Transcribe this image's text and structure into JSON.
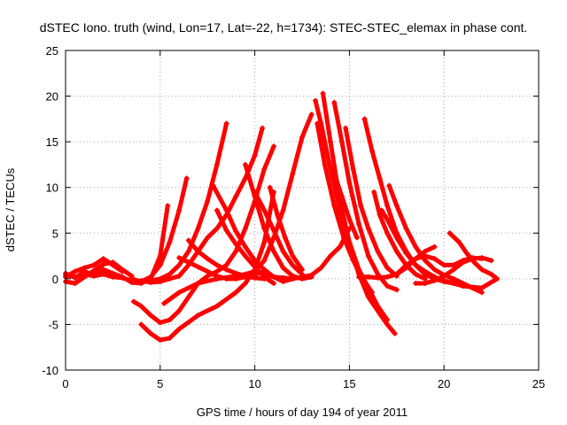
{
  "chart_data": {
    "type": "scatter",
    "title": "dSTEC Iono. truth (wind, Lon=17, Lat=-22, h=1734): STEC-STEC_elemax in phase cont.",
    "xlabel": "GPS time / hours of day 194 of year 2011",
    "ylabel": "dSTEC  / TECUs",
    "xlim": [
      0,
      25
    ],
    "ylim": [
      -10,
      25
    ],
    "xticks": [
      0,
      5,
      10,
      15,
      20,
      25
    ],
    "yticks": [
      -10,
      -5,
      0,
      5,
      10,
      15,
      20,
      25
    ],
    "grid": true,
    "marker": "+",
    "color": "#ff0000",
    "series": [
      {
        "x": [
          0,
          0.5,
          1,
          1.5,
          2,
          2.5,
          3,
          3.5,
          4,
          4.5,
          5,
          5.5,
          6,
          6.4
        ],
        "y": [
          0.4,
          0.2,
          0.5,
          0.3,
          0.5,
          0.2,
          0.1,
          -0.2,
          -0.3,
          0.2,
          1.5,
          4,
          7.5,
          11
        ]
      },
      {
        "x": [
          0,
          0.5,
          1,
          1.5,
          2,
          2.5,
          3,
          3.5,
          4,
          4.5,
          5,
          5.4
        ],
        "y": [
          0.6,
          0.1,
          0.8,
          0.4,
          1.0,
          0.6,
          0.2,
          -0.4,
          -0.5,
          0,
          2.5,
          8
        ]
      },
      {
        "x": [
          0,
          0.5,
          1,
          1.5,
          2,
          2.5,
          3,
          3.5
        ],
        "y": [
          -0.3,
          -0.5,
          0.2,
          0.9,
          1.6,
          1.8,
          1.0,
          0.3
        ]
      },
      {
        "x": [
          0,
          0.5,
          1,
          1.5,
          2,
          2.5,
          3
        ],
        "y": [
          0.2,
          0.8,
          1.2,
          1.5,
          2.2,
          1.5,
          0.8
        ]
      },
      {
        "x": [
          3.5,
          4,
          4.5,
          5,
          5.5,
          6,
          6.5,
          7,
          7.5,
          8,
          8.5
        ],
        "y": [
          0,
          -0.3,
          -0.2,
          0,
          0.5,
          1.5,
          3,
          5.5,
          8.5,
          12.5,
          17
        ]
      },
      {
        "x": [
          4,
          4.5,
          5,
          5.5,
          6,
          6.5,
          7,
          7.5,
          8,
          8.5,
          9,
          9.5,
          10,
          10.4
        ],
        "y": [
          -0.2,
          -0.4,
          -0.3,
          0,
          0.3,
          1.5,
          3,
          4.5,
          5.5,
          7,
          9,
          11,
          13.5,
          16.5
        ]
      },
      {
        "x": [
          5.2,
          6,
          7,
          8,
          9,
          9.5,
          10,
          10.5,
          11,
          11.5,
          12,
          12.5,
          13
        ],
        "y": [
          -2.7,
          -1.5,
          -0.5,
          0,
          0.3,
          0.5,
          0.8,
          2,
          4.5,
          7.5,
          11.5,
          15.5,
          18
        ]
      },
      {
        "x": [
          3.6,
          4,
          4.5,
          5,
          5.5,
          6,
          6.5,
          7,
          7.5,
          8,
          8.5,
          9,
          9.5,
          10,
          10.5,
          11
        ],
        "y": [
          -2.5,
          -3,
          -4,
          -4.8,
          -4.5,
          -3.5,
          -2,
          -0.5,
          0.3,
          0.8,
          1.5,
          3,
          5.5,
          8.5,
          12,
          14.5
        ]
      },
      {
        "x": [
          4,
          4.5,
          5,
          5.5,
          6,
          7,
          8,
          9,
          9.5,
          10,
          10.5,
          11
        ],
        "y": [
          -5,
          -6,
          -6.7,
          -6.5,
          -5.5,
          -4,
          -3,
          -1.5,
          -0.5,
          1,
          4,
          9.5
        ]
      },
      {
        "x": [
          6.5,
          7,
          7.5,
          8,
          8.5,
          9,
          9.5,
          10,
          10.5
        ],
        "y": [
          4.2,
          3,
          2.2,
          1.5,
          1,
          0.6,
          0.3,
          0.1,
          0
        ]
      },
      {
        "x": [
          6,
          6.5,
          7,
          7.5,
          8,
          8.5,
          9,
          9.5,
          10,
          10.5
        ],
        "y": [
          2.3,
          1.8,
          1.3,
          0.8,
          0.3,
          0,
          0,
          0.2,
          0.5,
          0.8
        ]
      },
      {
        "x": [
          7.8,
          8.5,
          9,
          9.5,
          10,
          10.5,
          11,
          11.5,
          12
        ],
        "y": [
          10.2,
          7.5,
          5.2,
          3.5,
          2,
          1,
          0.2,
          -0.3,
          0
        ]
      },
      {
        "x": [
          8,
          8.5,
          9,
          9.5,
          10,
          10.5,
          11
        ],
        "y": [
          7.5,
          5.3,
          3.8,
          2.5,
          1.3,
          0.2,
          -0.5
        ]
      },
      {
        "x": [
          9.5,
          10,
          10.5,
          11,
          11.5,
          12,
          12.5,
          13
        ],
        "y": [
          12.5,
          9,
          5.5,
          3,
          1.2,
          0.3,
          0,
          0.2
        ]
      },
      {
        "x": [
          10,
          10.5,
          11,
          11.5,
          12,
          12.5
        ],
        "y": [
          9.5,
          7.5,
          5.3,
          3,
          1.5,
          0.5
        ]
      },
      {
        "x": [
          10.8,
          11.2,
          11.6,
          12,
          12.5
        ],
        "y": [
          10,
          7,
          4.5,
          2.5,
          1
        ]
      },
      {
        "x": [
          10.5,
          11,
          11.5,
          12,
          12.5,
          13,
          13.5,
          14,
          14.5,
          15
        ],
        "y": [
          0.5,
          0.2,
          0.1,
          0,
          0.2,
          0.4,
          1.2,
          2.5,
          3.5,
          5.5
        ]
      },
      {
        "x": [
          13.2,
          13.5,
          14,
          14.5,
          15,
          15.5,
          16,
          16.5,
          17,
          17.4
        ],
        "y": [
          19.5,
          17,
          12,
          7.5,
          3.5,
          0.5,
          -2,
          -3.5,
          -5,
          -6
        ]
      },
      {
        "x": [
          13.6,
          14,
          14.5,
          15,
          15.5,
          16,
          16.5,
          17
        ],
        "y": [
          20.3,
          15,
          8.5,
          4,
          1,
          -1,
          -3,
          -4.5
        ]
      },
      {
        "x": [
          13.3,
          13.7,
          14.2,
          14.7,
          15.2,
          15.7,
          16.2
        ],
        "y": [
          17,
          12.5,
          8,
          4.5,
          2,
          0,
          -1.5
        ]
      },
      {
        "x": [
          14.2,
          14.6,
          15,
          15.5,
          16,
          16.5,
          17,
          17.5
        ],
        "y": [
          19.3,
          15,
          10.5,
          6,
          2.5,
          0.5,
          -0.8,
          -1.2
        ]
      },
      {
        "x": [
          14.8,
          15.2,
          15.6,
          16,
          16.5,
          17,
          17.5
        ],
        "y": [
          16.5,
          12,
          8,
          5.5,
          3,
          1.2,
          0.3
        ]
      },
      {
        "x": [
          14.2,
          14.6,
          15,
          15.4
        ],
        "y": [
          11.5,
          9,
          6.5,
          4.5
        ]
      },
      {
        "x": [
          15.8,
          16.2,
          16.6,
          17,
          17.5,
          18,
          18.5,
          19,
          19.5,
          20,
          20.5
        ],
        "y": [
          17.5,
          14,
          11,
          8,
          5,
          3,
          1.5,
          0.5,
          0,
          -0.3,
          -0.5
        ]
      },
      {
        "x": [
          17.1,
          17.5,
          18,
          18.5,
          19,
          19.5,
          20,
          20.5,
          21,
          21.5,
          22
        ],
        "y": [
          10.2,
          8,
          5.5,
          3.5,
          2,
          1,
          0.4,
          0,
          -0.5,
          -1,
          -1.5
        ]
      },
      {
        "x": [
          16.7,
          17,
          17.5,
          18,
          18.5,
          19,
          19.5,
          20,
          20.5,
          21,
          22,
          22.8
        ],
        "y": [
          7.5,
          6.5,
          4.5,
          2.8,
          1.5,
          0.8,
          0.2,
          -0.2,
          -0.5,
          -0.8,
          -1,
          0
        ]
      },
      {
        "x": [
          16.3,
          16.6,
          17,
          17.5,
          18,
          18.5,
          19
        ],
        "y": [
          9.5,
          7,
          5,
          3,
          1.5,
          0.5,
          0
        ]
      },
      {
        "x": [
          15.5,
          16,
          16.5,
          17,
          17.5,
          18,
          18.5,
          19,
          19.5
        ],
        "y": [
          0.2,
          0.2,
          0.1,
          0.2,
          0.5,
          1.2,
          2.2,
          3,
          3.5
        ]
      },
      {
        "x": [
          17.5,
          18,
          18.5,
          19,
          19.5,
          20,
          20.5,
          21,
          21.5,
          22
        ],
        "y": [
          0.5,
          1.5,
          2.2,
          2.5,
          2.2,
          1.5,
          1.5,
          2,
          2.3,
          2.2
        ]
      },
      {
        "x": [
          20.3,
          20.8,
          21.2,
          21.6,
          22,
          22.5,
          22.8
        ],
        "y": [
          5,
          4,
          2.8,
          1.8,
          1,
          0.5,
          0
        ]
      },
      {
        "x": [
          18.5,
          19,
          19.5,
          20,
          20.5,
          21,
          21.5,
          22,
          22.5
        ],
        "y": [
          -0.5,
          -0.5,
          -0.2,
          0.3,
          1,
          1.8,
          2.2,
          2.3,
          2
        ]
      }
    ]
  }
}
